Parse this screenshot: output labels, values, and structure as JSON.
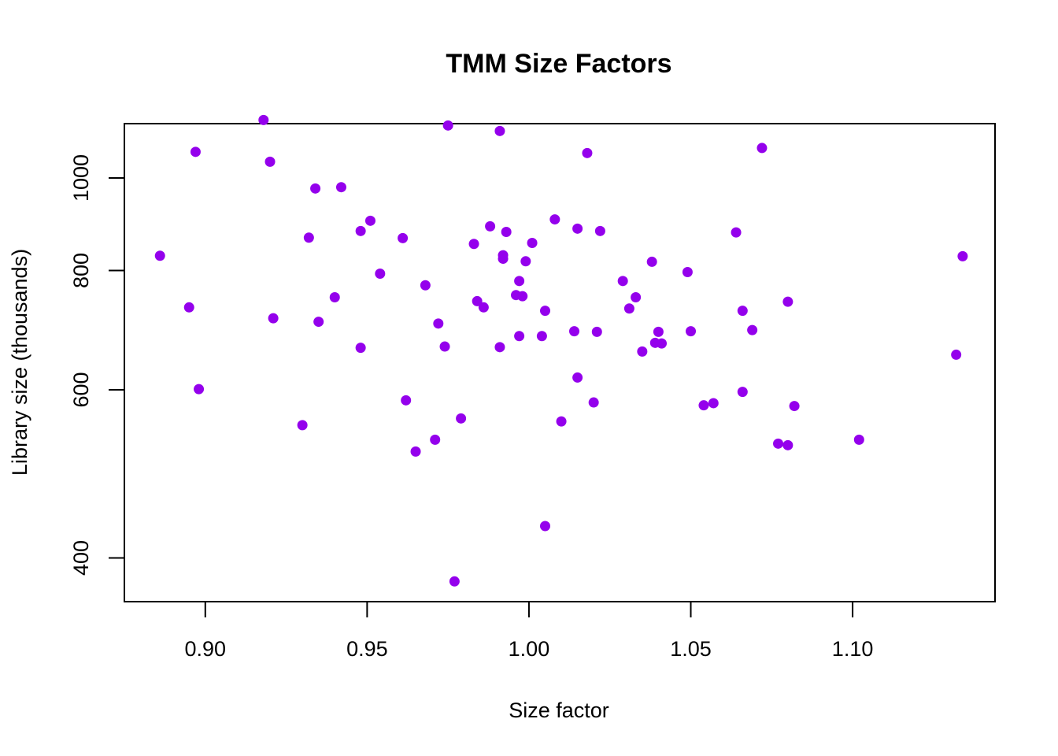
{
  "chart_data": {
    "type": "scatter",
    "title": "TMM Size Factors",
    "xlabel": "Size factor",
    "ylabel": "Library size (thousands)",
    "xlim": [
      0.875,
      1.144
    ],
    "ylim": [
      360,
      1140
    ],
    "y_scale": "log",
    "x_ticks": [
      "0.90",
      "0.95",
      "1.00",
      "1.05",
      "1.10"
    ],
    "x_tick_values": [
      0.9,
      0.95,
      1.0,
      1.05,
      1.1
    ],
    "y_ticks": [
      "400",
      "600",
      "800",
      "1000"
    ],
    "y_tick_values": [
      400,
      600,
      800,
      1000
    ],
    "grid": false,
    "point_color": "#9400EC",
    "points": [
      [
        0.918,
        1150
      ],
      [
        0.975,
        1135
      ],
      [
        0.991,
        1120
      ],
      [
        1.072,
        1075
      ],
      [
        0.897,
        1065
      ],
      [
        1.018,
        1062
      ],
      [
        0.92,
        1040
      ],
      [
        0.934,
        975
      ],
      [
        0.942,
        978
      ],
      [
        0.951,
        902
      ],
      [
        1.008,
        905
      ],
      [
        0.988,
        890
      ],
      [
        0.948,
        880
      ],
      [
        0.993,
        878
      ],
      [
        1.015,
        885
      ],
      [
        1.022,
        880
      ],
      [
        1.064,
        877
      ],
      [
        0.932,
        866
      ],
      [
        0.961,
        865
      ],
      [
        1.001,
        855
      ],
      [
        0.983,
        853
      ],
      [
        0.886,
        829
      ],
      [
        0.992,
        830
      ],
      [
        0.992,
        823
      ],
      [
        0.999,
        818
      ],
      [
        1.038,
        817
      ],
      [
        1.134,
        828
      ],
      [
        0.954,
        794
      ],
      [
        1.049,
        797
      ],
      [
        0.997,
        780
      ],
      [
        1.029,
        780
      ],
      [
        0.968,
        772
      ],
      [
        0.996,
        754
      ],
      [
        0.998,
        752
      ],
      [
        0.94,
        750
      ],
      [
        1.033,
        750
      ],
      [
        0.984,
        743
      ],
      [
        1.08,
        742
      ],
      [
        0.895,
        732
      ],
      [
        0.986,
        732
      ],
      [
        1.031,
        730
      ],
      [
        1.005,
        726
      ],
      [
        1.066,
        726
      ],
      [
        0.921,
        713
      ],
      [
        0.935,
        707
      ],
      [
        0.972,
        704
      ],
      [
        1.014,
        691
      ],
      [
        1.021,
        690
      ],
      [
        1.04,
        690
      ],
      [
        1.05,
        691
      ],
      [
        1.069,
        693
      ],
      [
        0.997,
        683
      ],
      [
        1.004,
        683
      ],
      [
        1.039,
        672
      ],
      [
        1.041,
        671
      ],
      [
        0.948,
        664
      ],
      [
        0.974,
        666
      ],
      [
        0.991,
        665
      ],
      [
        1.035,
        658
      ],
      [
        1.132,
        653
      ],
      [
        1.015,
        618
      ],
      [
        0.898,
        601
      ],
      [
        0.962,
        585
      ],
      [
        1.066,
        597
      ],
      [
        1.02,
        582
      ],
      [
        1.054,
        578
      ],
      [
        1.057,
        581
      ],
      [
        1.082,
        577
      ],
      [
        0.979,
        560
      ],
      [
        1.01,
        556
      ],
      [
        0.93,
        551
      ],
      [
        0.971,
        532
      ],
      [
        1.102,
        532
      ],
      [
        1.077,
        527
      ],
      [
        1.08,
        525
      ],
      [
        0.965,
        517
      ],
      [
        1.005,
        432
      ],
      [
        0.977,
        378
      ]
    ]
  }
}
